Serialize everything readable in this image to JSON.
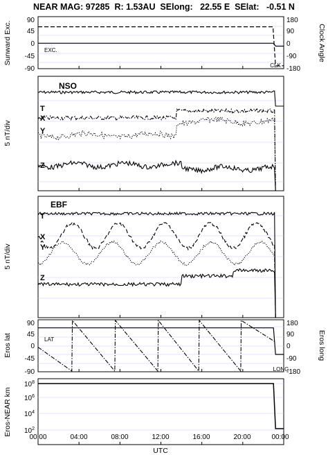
{
  "header": {
    "title": "NEAR MAG: 97285  R: 1.53AU  SElong:   22.55 E  SElat:   -0.51 N"
  },
  "x_axis": {
    "label": "UTC",
    "ticks": [
      "00:00",
      "04:00",
      "08:00",
      "12:00",
      "16:00",
      "20:00",
      "00:00"
    ]
  },
  "chart_data": [
    {
      "type": "line",
      "panel": "sunward",
      "ylabel_left": "Sunward Exc.",
      "ylabel_right": "Clock Angle",
      "yticks_left": [
        "90",
        "45",
        "0",
        "-45",
        "-90"
      ],
      "yticks_right": [
        "180",
        "90",
        "0",
        "-90",
        "-180"
      ],
      "ylim": [
        -90,
        90
      ],
      "series": [
        {
          "name": "EXC.",
          "style": "solid",
          "x": [
            0,
            23.0,
            23.2,
            24
          ],
          "y": [
            -2,
            -2,
            -12,
            -12
          ]
        },
        {
          "name": "CLK",
          "style": "dashed",
          "x": [
            0,
            22.95,
            23.2,
            24
          ],
          "y": [
            55,
            55,
            -80,
            -80
          ]
        }
      ]
    },
    {
      "type": "line",
      "panel": "NSO",
      "frame": "NSO",
      "ylabel": "5 nT/div",
      "series": [
        {
          "name": "T",
          "style": "solid"
        },
        {
          "name": "X",
          "style": "dashdot"
        },
        {
          "name": "Y",
          "style": "dotted"
        },
        {
          "name": "Z",
          "style": "solid"
        }
      ]
    },
    {
      "type": "line",
      "panel": "EBF",
      "frame": "EBF",
      "ylabel": "5 nT/div",
      "series": [
        {
          "name": "T",
          "style": "solid"
        },
        {
          "name": "X",
          "style": "dashed"
        },
        {
          "name": "Y",
          "style": "dotted"
        },
        {
          "name": "Z",
          "style": "solid"
        }
      ]
    },
    {
      "type": "line",
      "panel": "eros_position",
      "ylabel_left": "Eros lat",
      "ylabel_right": "Eros long",
      "yticks_left": [
        "90",
        "45",
        "0",
        "-45",
        "-90"
      ],
      "yticks_right": [
        "180",
        "90",
        "0",
        "-90",
        "-180"
      ],
      "ylim": [
        -90,
        90
      ],
      "series": [
        {
          "name": "LAT",
          "style": "solid",
          "x": [
            0,
            23.0,
            23.2,
            24
          ],
          "y": [
            62,
            62,
            -30,
            -30
          ]
        },
        {
          "name": "LONG",
          "style": "dashdot",
          "units": "deg (right axis)",
          "x": [
            0,
            3.3,
            3.35,
            7.5,
            7.55,
            11.7,
            11.75,
            15.7,
            15.75,
            19.8,
            19.85,
            23.1
          ],
          "y": [
            -10,
            -175,
            175,
            -175,
            175,
            -175,
            175,
            -175,
            175,
            -175,
            175,
            30
          ]
        }
      ]
    },
    {
      "type": "line",
      "panel": "distance",
      "ylabel": "Eros-NEAR km",
      "yscale": "log",
      "yticks": [
        "10^8",
        "10^6",
        "10^4",
        "10^2"
      ],
      "series": [
        {
          "name": "Eros-NEAR distance",
          "style": "solid",
          "x": [
            0,
            23.0,
            23.2,
            24
          ],
          "y": [
            100000000,
            100000000,
            150,
            150
          ]
        }
      ]
    }
  ]
}
